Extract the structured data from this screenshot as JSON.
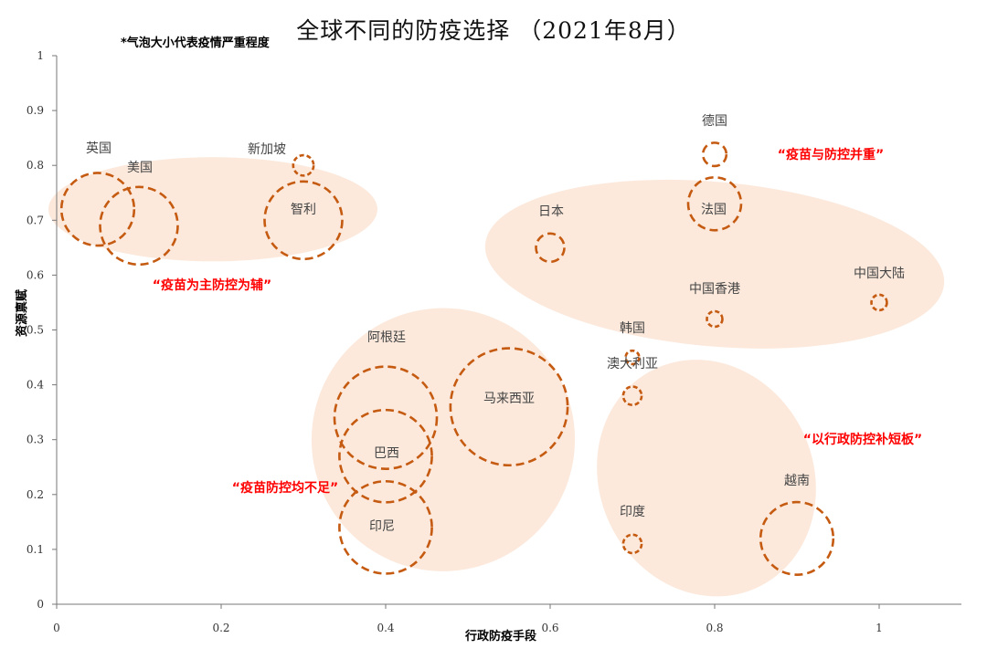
{
  "chart_data": {
    "type": "scatter",
    "title": "全球不同的防疫选择 （2021年8月）",
    "note": "*气泡大小代表疫情严重程度",
    "xlabel": "行政防疫手段",
    "ylabel": "资源禀赋",
    "xlim": [
      0,
      1.1
    ],
    "ylim": [
      0,
      1
    ],
    "x_ticks": [
      0,
      0.2,
      0.4,
      0.6,
      0.8,
      1
    ],
    "y_ticks": [
      0,
      0.1,
      0.2,
      0.3,
      0.4,
      0.5,
      0.6,
      0.7,
      0.8,
      0.9,
      1
    ],
    "grid": false,
    "bubble_color": "#c55a11",
    "group_fill": "#fbe5d6",
    "group_label_color": "#ff0000",
    "points": [
      {
        "label": "英国",
        "x": 0.05,
        "y": 0.72,
        "size": 0.07
      },
      {
        "label": "美国",
        "x": 0.1,
        "y": 0.69,
        "size": 0.075
      },
      {
        "label": "新加坡",
        "x": 0.3,
        "y": 0.8,
        "size": 0.017
      },
      {
        "label": "智利",
        "x": 0.3,
        "y": 0.7,
        "size": 0.075
      },
      {
        "label": "日本",
        "x": 0.6,
        "y": 0.65,
        "size": 0.025
      },
      {
        "label": "德国",
        "x": 0.8,
        "y": 0.82,
        "size": 0.02
      },
      {
        "label": "法国",
        "x": 0.8,
        "y": 0.73,
        "size": 0.05
      },
      {
        "label": "中国香港",
        "x": 0.8,
        "y": 0.52,
        "size": 0.012
      },
      {
        "label": "中国大陆",
        "x": 1.0,
        "y": 0.55,
        "size": 0.012
      },
      {
        "label": "阿根廷",
        "x": 0.4,
        "y": 0.34,
        "size": 0.1
      },
      {
        "label": "巴西",
        "x": 0.4,
        "y": 0.27,
        "size": 0.09
      },
      {
        "label": "印尼",
        "x": 0.4,
        "y": 0.14,
        "size": 0.09
      },
      {
        "label": "马来西亚",
        "x": 0.55,
        "y": 0.36,
        "size": 0.115
      },
      {
        "label": "韩国",
        "x": 0.7,
        "y": 0.45,
        "size": 0.01
      },
      {
        "label": "澳大利亚",
        "x": 0.7,
        "y": 0.38,
        "size": 0.015
      },
      {
        "label": "印度",
        "x": 0.7,
        "y": 0.11,
        "size": 0.015
      },
      {
        "label": "越南",
        "x": 0.9,
        "y": 0.12,
        "size": 0.07
      }
    ],
    "groups": [
      {
        "label": "“疫苗为主防控为辅”",
        "cx": 0.19,
        "cy": 0.72,
        "rx": 0.2,
        "ry": 0.095,
        "angle": 0
      },
      {
        "label": "“疫苗与防控并重”",
        "cx": 0.8,
        "cy": 0.62,
        "rx": 0.28,
        "ry": 0.15,
        "angle": 5
      },
      {
        "label": "“疫苗防控均不足”",
        "cx": 0.47,
        "cy": 0.3,
        "rx": 0.16,
        "ry": 0.24,
        "angle": 35
      },
      {
        "label": "“以行政防控补短板”",
        "cx": 0.79,
        "cy": 0.23,
        "rx": 0.13,
        "ry": 0.22,
        "angle": -25
      }
    ]
  }
}
